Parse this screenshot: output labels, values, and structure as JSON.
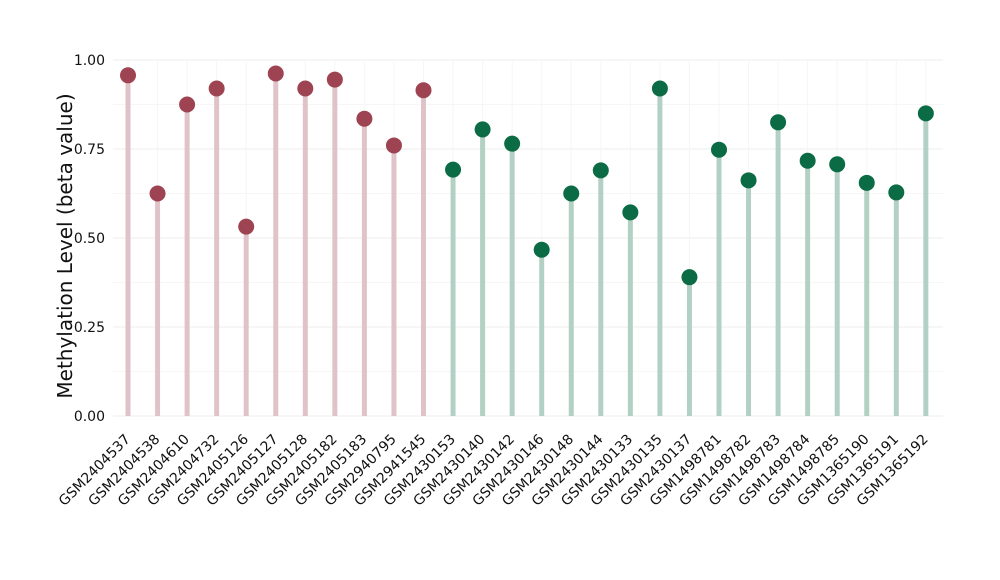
{
  "chart_data": {
    "type": "lollipop",
    "ylabel": "Methylation Level (beta value)",
    "ylim": [
      0,
      1
    ],
    "yticks": [
      0.0,
      0.25,
      0.5,
      0.75,
      1.0
    ],
    "ytick_labels": [
      "0.00",
      "0.25",
      "0.50",
      "0.75",
      "1.00"
    ],
    "grid": true,
    "colors": {
      "group1_point": "#9e4352",
      "group1_stem": "#e0c3c8",
      "group2_point": "#0b6b45",
      "group2_stem": "#b2d0c4"
    },
    "categories": [
      "GSM2404537",
      "GSM2404538",
      "GSM2404610",
      "GSM2404732",
      "GSM2405126",
      "GSM2405127",
      "GSM2405128",
      "GSM2405182",
      "GSM2405183",
      "GSM2940795",
      "GSM2941545",
      "GSM2430153",
      "GSM2430140",
      "GSM2430142",
      "GSM2430146",
      "GSM2430148",
      "GSM2430144",
      "GSM2430133",
      "GSM2430135",
      "GSM2430137",
      "GSM1498781",
      "GSM1498782",
      "GSM1498783",
      "GSM1498784",
      "GSM1498785",
      "GSM1365190",
      "GSM1365191",
      "GSM1365192"
    ],
    "values": [
      0.957,
      0.625,
      0.875,
      0.92,
      0.532,
      0.962,
      0.92,
      0.945,
      0.835,
      0.76,
      0.915,
      0.692,
      0.805,
      0.765,
      0.467,
      0.625,
      0.69,
      0.572,
      0.92,
      0.39,
      0.748,
      0.662,
      0.825,
      0.717,
      0.707,
      0.655,
      0.628,
      0.85
    ],
    "groups": [
      1,
      1,
      1,
      1,
      1,
      1,
      1,
      1,
      1,
      1,
      1,
      2,
      2,
      2,
      2,
      2,
      2,
      2,
      2,
      2,
      2,
      2,
      2,
      2,
      2,
      2,
      2,
      2
    ]
  }
}
